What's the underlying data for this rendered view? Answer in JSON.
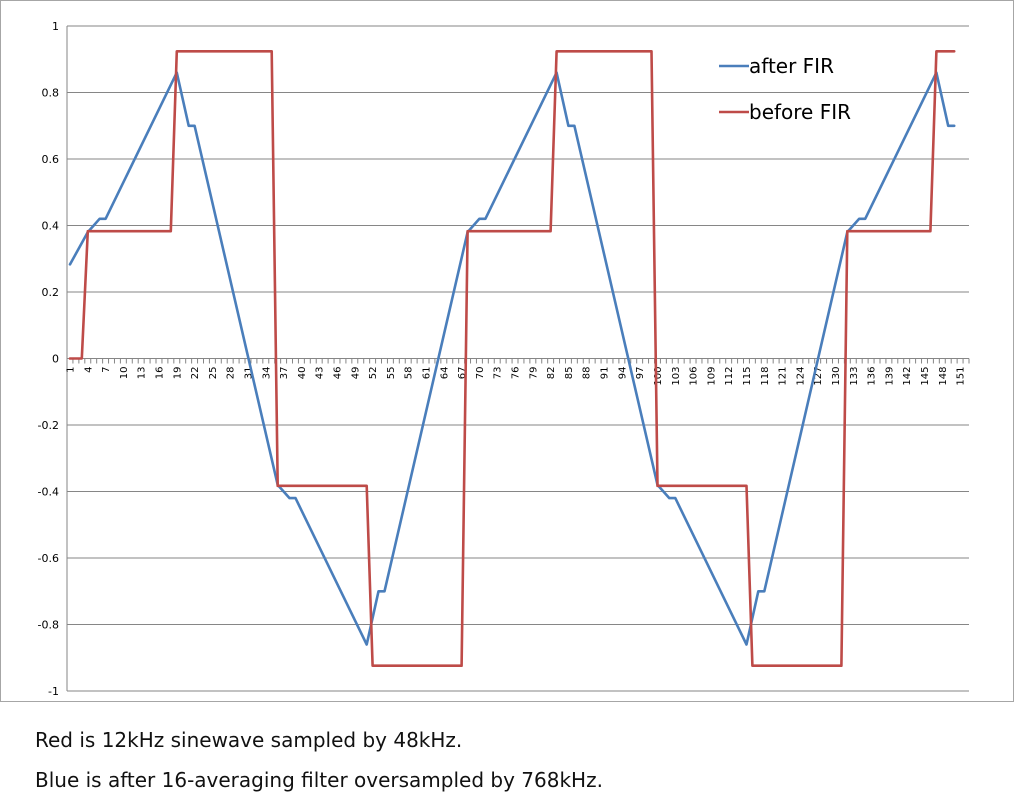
{
  "chart_data": {
    "type": "line",
    "title": "",
    "xlabel": "",
    "ylabel": "",
    "ylim": [
      -1,
      1
    ],
    "yticks": [
      1,
      0.8,
      0.6,
      0.4,
      0.2,
      0,
      -0.2,
      -0.4,
      -0.6,
      -0.8,
      -1
    ],
    "ytick_labels": [
      "1",
      "0.8",
      "0.6",
      "0.4",
      "0.2",
      "0",
      "-0.2",
      "-0.4",
      "-0.6",
      "-0.8",
      "-1"
    ],
    "x_categories": {
      "from": 1,
      "to": 152
    },
    "xtick_labels": [
      "1",
      "4",
      "7",
      "10",
      "13",
      "16",
      "19",
      "22",
      "25",
      "28",
      "31",
      "34",
      "37",
      "40",
      "43",
      "46",
      "49",
      "52",
      "55",
      "58",
      "61",
      "64",
      "67",
      "70",
      "73",
      "76",
      "79",
      "82",
      "85",
      "88",
      "91",
      "94",
      "97",
      "100",
      "103",
      "106",
      "109",
      "112",
      "115",
      "118",
      "121",
      "124",
      "127",
      "130",
      "133",
      "136",
      "139",
      "142",
      "145",
      "148",
      "151"
    ],
    "grid": true,
    "legend": "top-right",
    "series": [
      {
        "name": "after FIR",
        "color": "#4a7ebb",
        "points": [
          [
            1,
            0.283
          ],
          [
            4,
            0.38
          ],
          [
            5,
            0.4
          ],
          [
            6,
            0.42
          ],
          [
            7,
            0.42
          ],
          [
            19,
            0.86
          ],
          [
            21,
            0.7
          ],
          [
            22,
            0.7
          ],
          [
            36,
            -0.38
          ],
          [
            38,
            -0.42
          ],
          [
            39,
            -0.42
          ],
          [
            51,
            -0.86
          ],
          [
            53,
            -0.7
          ],
          [
            54,
            -0.7
          ],
          [
            68,
            0.38
          ],
          [
            70,
            0.42
          ],
          [
            71,
            0.42
          ],
          [
            83,
            0.86
          ],
          [
            85,
            0.7
          ],
          [
            86,
            0.7
          ],
          [
            100,
            -0.38
          ],
          [
            102,
            -0.42
          ],
          [
            103,
            -0.42
          ],
          [
            115,
            -0.86
          ],
          [
            117,
            -0.7
          ],
          [
            118,
            -0.7
          ],
          [
            132,
            0.38
          ],
          [
            134,
            0.42
          ],
          [
            135,
            0.42
          ],
          [
            147,
            0.86
          ],
          [
            149,
            0.7
          ],
          [
            150,
            0.7
          ]
        ]
      },
      {
        "name": "before FIR",
        "color": "#be4b48",
        "points": [
          [
            1,
            0
          ],
          [
            3,
            0
          ],
          [
            4,
            0.383
          ],
          [
            18,
            0.383
          ],
          [
            19,
            0.924
          ],
          [
            35,
            0.924
          ],
          [
            36,
            -0.383
          ],
          [
            51,
            -0.383
          ],
          [
            52,
            -0.924
          ],
          [
            67,
            -0.924
          ],
          [
            68,
            0.383
          ],
          [
            82,
            0.383
          ],
          [
            83,
            0.924
          ],
          [
            99,
            0.924
          ],
          [
            100,
            -0.383
          ],
          [
            115,
            -0.383
          ],
          [
            116,
            -0.924
          ],
          [
            131,
            -0.924
          ],
          [
            132,
            0.383
          ],
          [
            146,
            0.383
          ],
          [
            147,
            0.924
          ],
          [
            150,
            0.924
          ]
        ]
      }
    ]
  },
  "captions": {
    "line1": "Red is 12kHz sinewave sampled by 48kHz.",
    "line2": "Blue is after 16-averaging filter oversampled by 768kHz."
  }
}
